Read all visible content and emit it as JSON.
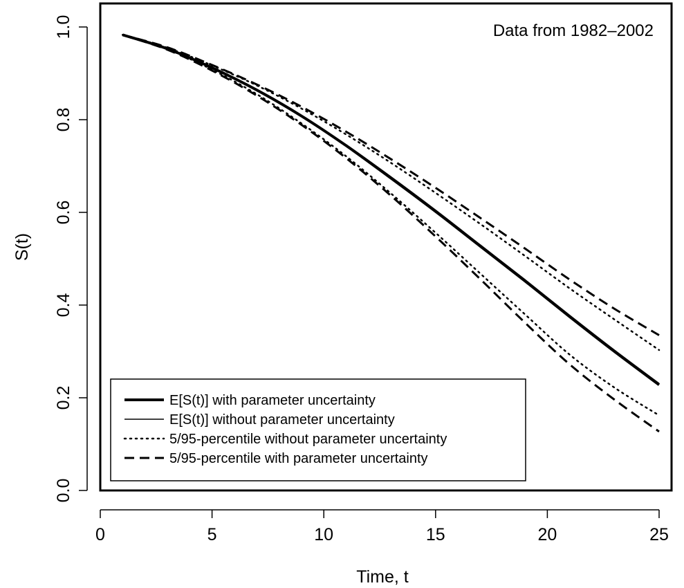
{
  "chart_data": {
    "type": "line",
    "annotation": "Data from 1982–2002",
    "xlabel": "Time, t",
    "ylabel": "S(t)",
    "xlim": [
      0,
      25
    ],
    "ylim": [
      0,
      1
    ],
    "xticks": [
      0,
      5,
      10,
      15,
      20,
      25
    ],
    "yticks": [
      0.0,
      0.2,
      0.4,
      0.6,
      0.8,
      1.0
    ],
    "xtick_labels": [
      "0",
      "5",
      "10",
      "15",
      "20",
      "25"
    ],
    "ytick_labels": [
      "0.0",
      "0.2",
      "0.4",
      "0.6",
      "0.8",
      "1.0"
    ],
    "grid": false,
    "legend_position": "bottom-left",
    "x": [
      1,
      3,
      5,
      7,
      9,
      11,
      13,
      15,
      17,
      19,
      21,
      23,
      25
    ],
    "series": [
      {
        "name": "E[S(t)] with parameter uncertainty",
        "style": "solid-thick",
        "values": [
          0.983,
          0.953,
          0.912,
          0.864,
          0.808,
          0.744,
          0.674,
          0.602,
          0.527,
          0.452,
          0.375,
          0.3,
          0.228
        ]
      },
      {
        "name": "E[S(t)] without parameter uncertainty",
        "style": "solid-thin",
        "values": [
          0.983,
          0.953,
          0.913,
          0.865,
          0.809,
          0.746,
          0.677,
          0.605,
          0.53,
          0.455,
          0.378,
          0.303,
          0.231
        ]
      },
      {
        "name": "5/95-percentile without parameter uncertainty",
        "style": "dotted",
        "values": [
          0.983,
          0.952,
          0.908,
          0.855,
          0.792,
          0.721,
          0.641,
          0.556,
          0.468,
          0.38,
          0.293,
          0.222,
          0.162
        ],
        "upper_values": [
          0.983,
          0.955,
          0.917,
          0.874,
          0.824,
          0.768,
          0.707,
          0.642,
          0.575,
          0.506,
          0.436,
          0.369,
          0.303
        ]
      },
      {
        "name": "5/95-percentile with parameter uncertainty",
        "style": "dashed",
        "values": [
          0.983,
          0.951,
          0.906,
          0.852,
          0.789,
          0.717,
          0.636,
          0.548,
          0.456,
          0.362,
          0.272,
          0.196,
          0.127
        ],
        "upper_values": [
          0.983,
          0.956,
          0.918,
          0.876,
          0.828,
          0.774,
          0.715,
          0.653,
          0.588,
          0.522,
          0.455,
          0.392,
          0.335
        ]
      }
    ]
  }
}
